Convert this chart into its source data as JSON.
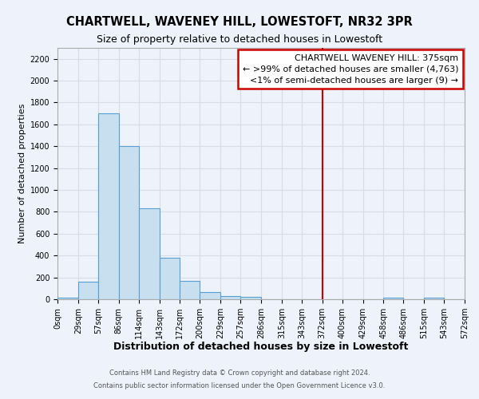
{
  "title": "CHARTWELL, WAVENEY HILL, LOWESTOFT, NR32 3PR",
  "subtitle": "Size of property relative to detached houses in Lowestoft",
  "xlabel": "Distribution of detached houses by size in Lowestoft",
  "ylabel": "Number of detached properties",
  "bin_edges": [
    0,
    29,
    57,
    86,
    114,
    143,
    172,
    200,
    229,
    257,
    286,
    315,
    343,
    372,
    400,
    429,
    458,
    486,
    515,
    543,
    572
  ],
  "bar_heights": [
    15,
    160,
    1700,
    1400,
    830,
    380,
    165,
    65,
    30,
    25,
    0,
    0,
    0,
    0,
    0,
    0,
    15,
    0,
    15,
    0
  ],
  "bar_color": "#c8dff0",
  "bar_edge_color": "#5a9fd4",
  "vline_x": 372,
  "vline_color": "#cc0000",
  "ylim": [
    0,
    2300
  ],
  "yticks": [
    0,
    200,
    400,
    600,
    800,
    1000,
    1200,
    1400,
    1600,
    1800,
    2000,
    2200
  ],
  "tick_labels": [
    "0sqm",
    "29sqm",
    "57sqm",
    "86sqm",
    "114sqm",
    "143sqm",
    "172sqm",
    "200sqm",
    "229sqm",
    "257sqm",
    "286sqm",
    "315sqm",
    "343sqm",
    "372sqm",
    "400sqm",
    "429sqm",
    "458sqm",
    "486sqm",
    "515sqm",
    "543sqm",
    "572sqm"
  ],
  "annotation_title": "CHARTWELL WAVENEY HILL: 375sqm",
  "annotation_line1": "← >99% of detached houses are smaller (4,763)",
  "annotation_line2": "<1% of semi-detached houses are larger (9) →",
  "annotation_box_color": "#ffffff",
  "annotation_box_edge_color": "#cc0000",
  "footer1": "Contains HM Land Registry data © Crown copyright and database right 2024.",
  "footer2": "Contains public sector information licensed under the Open Government Licence v3.0.",
  "bg_color": "#eef2fa",
  "grid_color": "#d8dce8",
  "title_fontsize": 10.5,
  "subtitle_fontsize": 9,
  "xlabel_fontsize": 9,
  "ylabel_fontsize": 8,
  "tick_fontsize": 7,
  "footer_fontsize": 6,
  "annotation_fontsize": 8
}
